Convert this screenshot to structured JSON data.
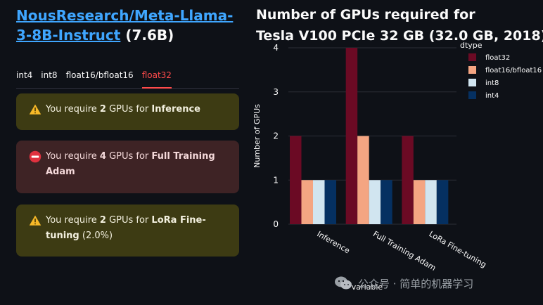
{
  "model": {
    "name": "NousResearch/Meta-Llama-3-8B-Instruct",
    "params": "(7.6B)"
  },
  "tabs": [
    {
      "label": "int4",
      "active": false
    },
    {
      "label": "int8",
      "active": false
    },
    {
      "label": "float16/bfloat16",
      "active": false
    },
    {
      "label": "float32",
      "active": true
    }
  ],
  "alerts": [
    {
      "type": "warning",
      "icon": "warning-icon",
      "prefix": "You require ",
      "count": "2",
      "middle": " GPUs for ",
      "task": "Inference",
      "suffix": ""
    },
    {
      "type": "error",
      "icon": "no-entry-icon",
      "prefix": "You require ",
      "count": "4",
      "middle": " GPUs for ",
      "task": "Full Training Adam",
      "suffix": ""
    },
    {
      "type": "warning",
      "icon": "warning-icon",
      "prefix": "You require ",
      "count": "2",
      "middle": " GPUs for ",
      "task": "LoRa Fine-tuning",
      "suffix": " (2.0%)"
    }
  ],
  "chart": {
    "title_line1": "Number of GPUs required for",
    "title_line2": "Tesla V100 PCIe 32 GB (32.0 GB, 2018)"
  },
  "chart_data": {
    "type": "bar",
    "categories": [
      "Inference",
      "Full Training Adam",
      "LoRa Fine-tuning"
    ],
    "series": [
      {
        "name": "float32",
        "values": [
          2,
          4,
          2
        ],
        "color": "#6b0a24"
      },
      {
        "name": "float16/bfloat16",
        "values": [
          1,
          2,
          1
        ],
        "color": "#f4a582"
      },
      {
        "name": "int8",
        "values": [
          1,
          1,
          1
        ],
        "color": "#d1e5f0"
      },
      {
        "name": "int4",
        "values": [
          1,
          1,
          1
        ],
        "color": "#053061"
      }
    ],
    "xlabel": "variable",
    "ylabel": "Number of GPUs",
    "ylim": [
      0,
      4
    ],
    "yticks": [
      0,
      1,
      2,
      3,
      4
    ],
    "legend_title": "dtype",
    "legend_position": "top-right",
    "grid": true
  },
  "watermark": {
    "text": "公众号 · 简单的机器学习"
  }
}
